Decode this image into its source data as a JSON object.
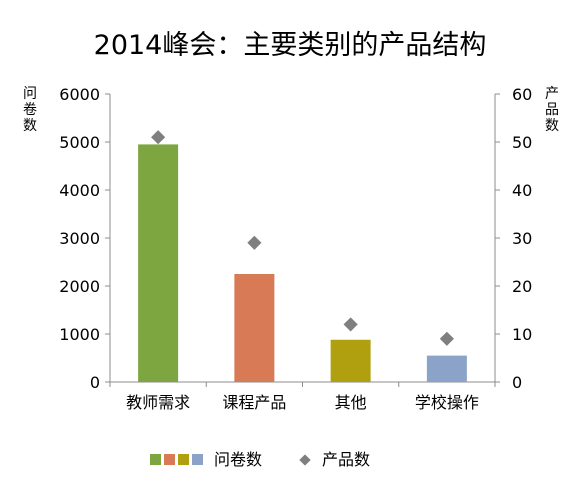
{
  "chart_data": {
    "type": "bar",
    "title": "2014峰会：主要类别的产品结构",
    "categories": [
      "教师需求",
      "课程产品",
      "其他",
      "学校操作"
    ],
    "series": [
      {
        "name": "问卷数",
        "type": "bar",
        "axis": "left",
        "values": [
          4950,
          2250,
          880,
          550
        ],
        "colors": [
          "#7ea640",
          "#d97a56",
          "#b0a010",
          "#8ba3c8"
        ]
      },
      {
        "name": "产品数",
        "type": "scatter",
        "axis": "right",
        "values": [
          51,
          29,
          12,
          9
        ],
        "color": "#7f7f7f"
      }
    ],
    "ylabel_left": "问卷数",
    "ylabel_right": "产品数",
    "ylim_left": [
      0,
      6000
    ],
    "ylim_right": [
      0,
      60
    ],
    "yticks_left": [
      "0",
      "1000",
      "2000",
      "3000",
      "4000",
      "5000",
      "6000"
    ],
    "yticks_right": [
      "0",
      "10",
      "20",
      "30",
      "40",
      "50",
      "60"
    ],
    "legend": {
      "position": "bottom",
      "entries": [
        "问卷数",
        "产品数"
      ]
    },
    "grid": false
  }
}
